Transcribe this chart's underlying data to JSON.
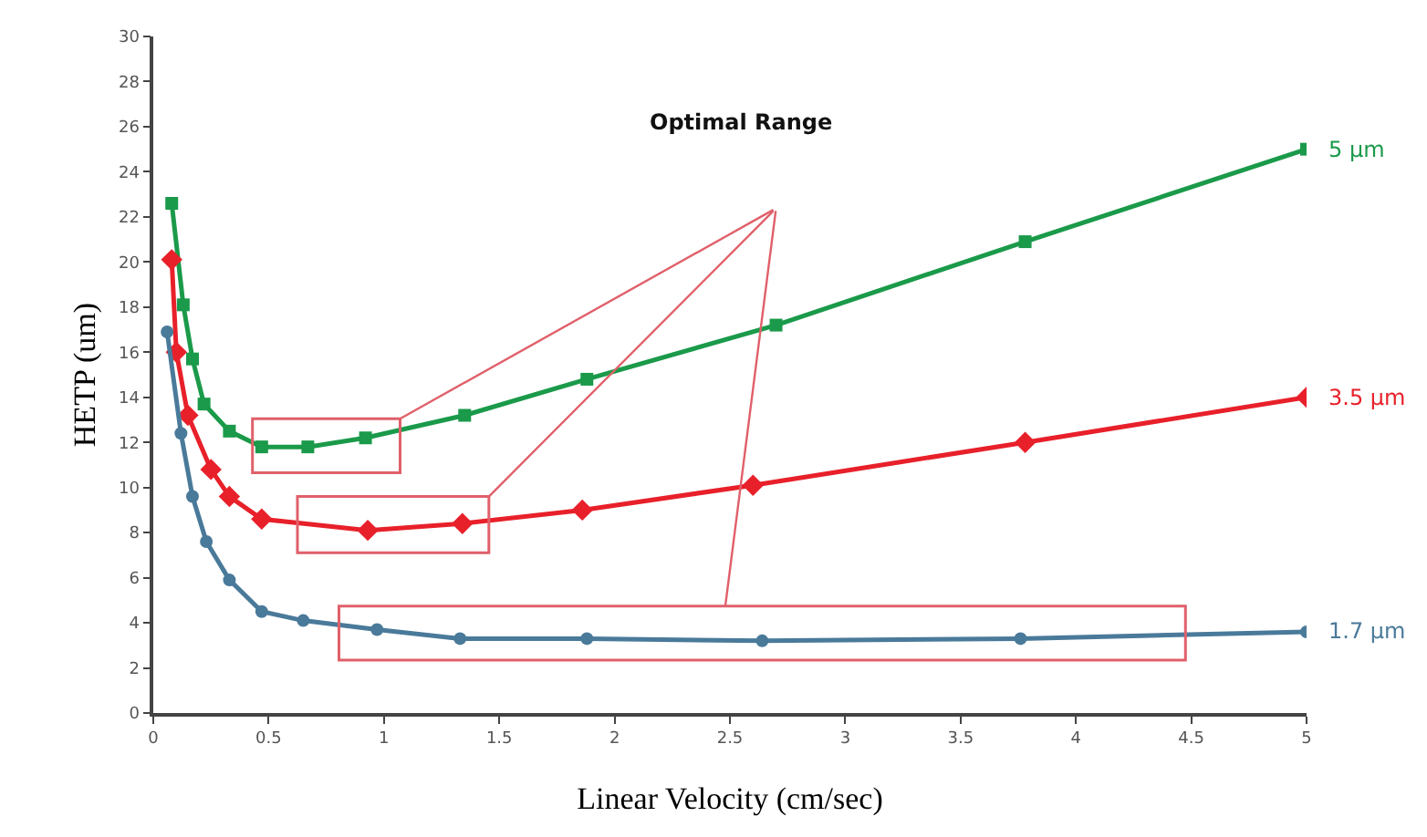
{
  "chart_data": {
    "type": "line",
    "xlabel": "Linear Velocity (cm/sec)",
    "ylabel": "HETP (um)",
    "xlim": [
      0,
      5
    ],
    "xticks": [
      0,
      0.5,
      1,
      1.5,
      2,
      2.5,
      3,
      3.5,
      4,
      4.5,
      5
    ],
    "ylim": [
      0,
      30
    ],
    "yticks": [
      0,
      2,
      4,
      6,
      8,
      10,
      12,
      14,
      16,
      18,
      20,
      22,
      24,
      26,
      28,
      30
    ],
    "legend": false,
    "series": [
      {
        "name": "5 µm",
        "color": "#1a9a4a",
        "marker": "square",
        "x": [
          0.08,
          0.13,
          0.17,
          0.22,
          0.33,
          0.47,
          0.67,
          0.92,
          1.35,
          1.88,
          2.7,
          3.78,
          5.0
        ],
        "values": [
          22.6,
          18.1,
          15.7,
          13.7,
          12.5,
          11.8,
          11.8,
          12.2,
          13.2,
          14.8,
          17.2,
          20.9,
          25.0
        ]
      },
      {
        "name": "3.5 µm",
        "color": "#e8202a",
        "marker": "diamond",
        "x": [
          0.08,
          0.1,
          0.15,
          0.25,
          0.33,
          0.47,
          0.93,
          1.34,
          1.86,
          2.6,
          3.78,
          5.0
        ],
        "values": [
          20.1,
          16.0,
          13.2,
          10.8,
          9.6,
          8.6,
          8.1,
          8.4,
          9.0,
          10.1,
          12.0,
          14.0
        ]
      },
      {
        "name": "1.7 µm",
        "color": "#4a7a9a",
        "marker": "circle",
        "x": [
          0.06,
          0.12,
          0.17,
          0.23,
          0.33,
          0.47,
          0.65,
          0.97,
          1.33,
          1.88,
          2.64,
          3.76,
          5.0
        ],
        "values": [
          16.9,
          12.4,
          9.6,
          7.6,
          5.9,
          4.5,
          4.1,
          3.7,
          3.3,
          3.3,
          3.2,
          3.3,
          3.6
        ]
      }
    ],
    "annotations": [
      "Optimal Range"
    ]
  }
}
